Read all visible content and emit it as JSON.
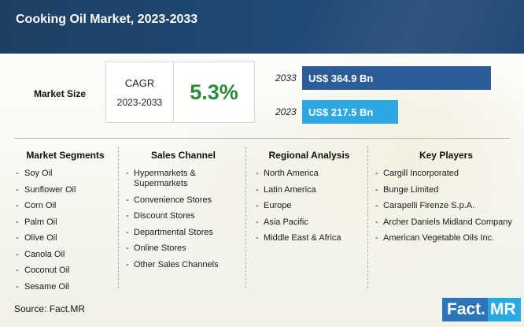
{
  "header": {
    "title": "Cooking Oil Market, 2023-2033"
  },
  "market_size": {
    "label": "Market Size",
    "cagr_title": "CAGR",
    "cagr_period": "2023-2033",
    "cagr_value": "5.3%",
    "bars": [
      {
        "year": "2033",
        "value_label": "US$ 364.9 Bn",
        "value_bn": 364.9,
        "color": "#2c5c97"
      },
      {
        "year": "2023",
        "value_label": "US$ 217.5 Bn",
        "value_bn": 217.5,
        "color": "#2da8e3"
      }
    ]
  },
  "columns": [
    {
      "title": "Market Segments",
      "items": [
        "Soy Oil",
        "Sunflower Oil",
        "Corn Oil",
        "Palm Oil",
        "Olive Oil",
        "Canola Oil",
        "Coconut Oil",
        "Sesame Oil"
      ]
    },
    {
      "title": "Sales Channel",
      "items": [
        "Hypermarkets & Supermarkets",
        "Convenience Stores",
        "Discount Stores",
        "Departmental Stores",
        "Online Stores",
        "Other Sales Channels"
      ]
    },
    {
      "title": "Regional Analysis",
      "items": [
        "North America",
        "Latin America",
        "Europe",
        "Asia Pacific",
        "Middle East & Africa"
      ]
    },
    {
      "title": "Key Players",
      "items": [
        "Cargill Incorporated",
        "Bunge Limited",
        "Carapelli Firenze S.p.A.",
        "Archer Daniels Midland Company",
        "American Vegetable Oils Inc."
      ]
    }
  ],
  "footer": {
    "source": "Source: Fact.MR",
    "logo_part1": "Fact.",
    "logo_part2": "MR"
  },
  "colors": {
    "header": "#1d3f63",
    "accent_green": "#2b8a3e",
    "bar_dark": "#2c5c97",
    "bar_light": "#2da8e3"
  }
}
